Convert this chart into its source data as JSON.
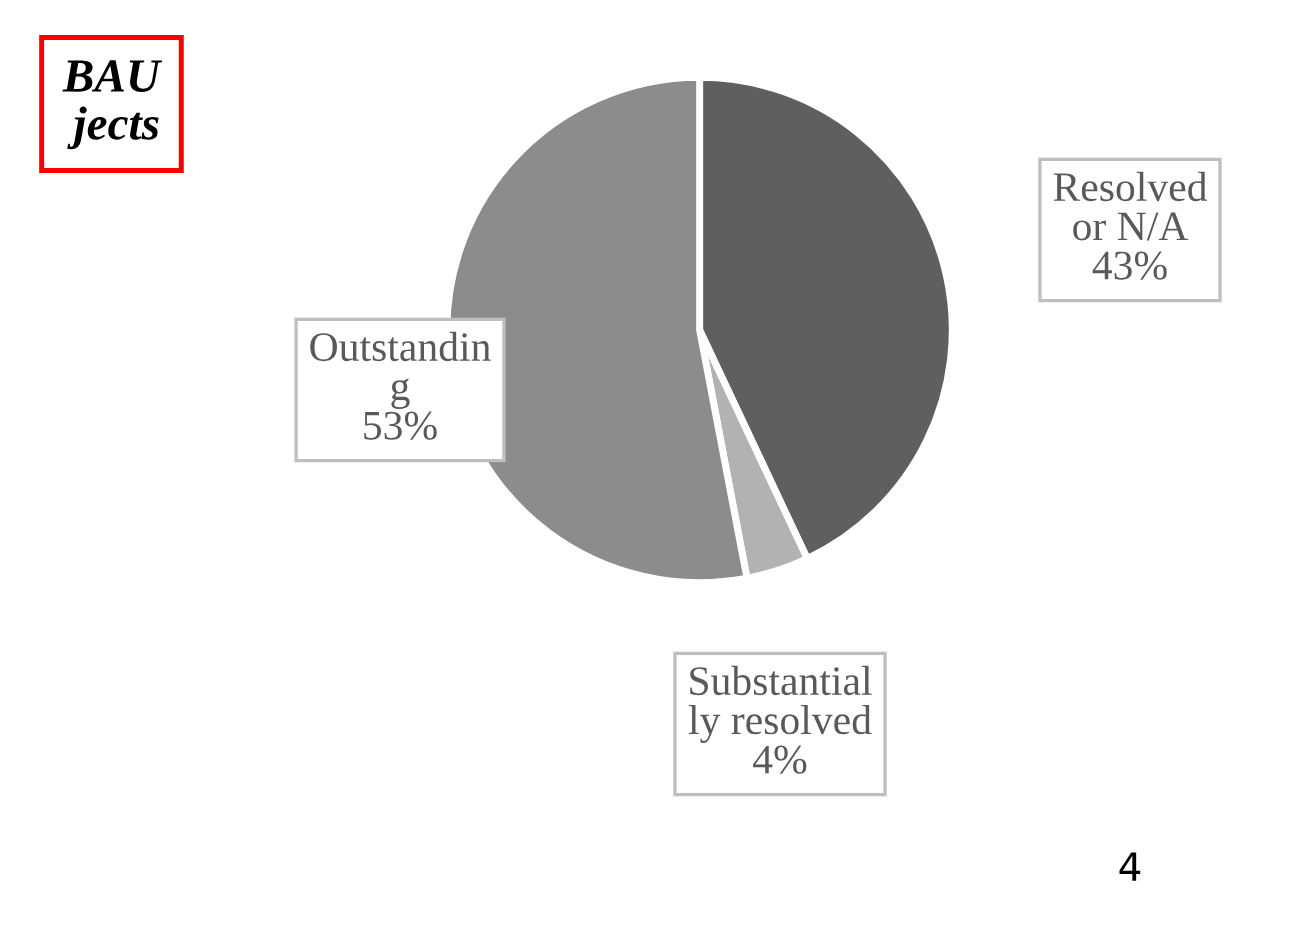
{
  "chart_data": {
    "type": "pie",
    "title": "BAU\njects",
    "categories": [
      "Resolved\nor N/A",
      "Substantial\nly resolved",
      "Outstandin\ng"
    ],
    "values": [
      43,
      4,
      53
    ],
    "value_labels": [
      "43%",
      "4%",
      "53%"
    ],
    "colors": [
      "#5f5f5f",
      "#b2b2b2",
      "#8c8c8c"
    ],
    "annotations": [
      "4"
    ],
    "legend": false
  }
}
